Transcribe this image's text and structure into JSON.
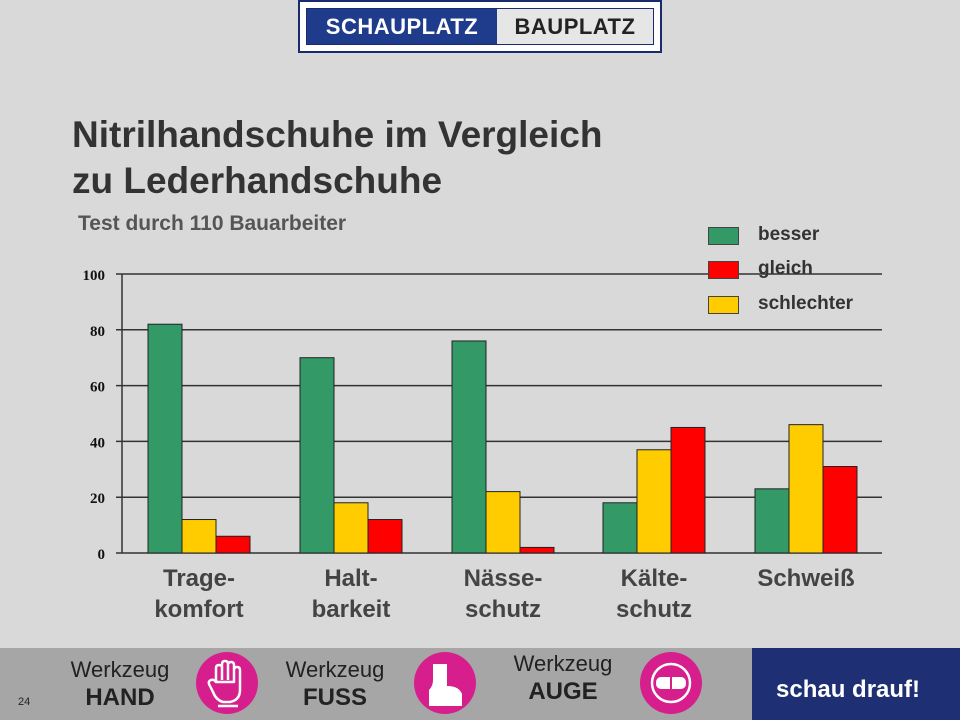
{
  "logo": {
    "left_word": "SCHAUPLATZ",
    "right_word": "BAUPLATZ"
  },
  "title_line1": "Nitrilhandschuhe im Vergleich",
  "title_line2": "zu Lederhandschuhe",
  "subtitle": "Test durch 110 Bauarbeiter",
  "chart_data": {
    "type": "bar",
    "title": "Nitrilhandschuhe im Vergleich zu Lederhandschuhe",
    "subtitle": "Test durch 110 Bauarbeiter",
    "categories": [
      "Trage-\nkomfort",
      "Halt-\nbarkeit",
      "Nässe-\nschutz",
      "Kälte-\nschutz",
      "Schweiß"
    ],
    "series_order_per_group": [
      [
        "besser",
        "schlechter",
        "gleich"
      ],
      [
        "besser",
        "schlechter",
        "gleich"
      ],
      [
        "besser",
        "schlechter",
        "gleich"
      ],
      [
        "besser",
        "schlechter",
        "gleich"
      ],
      [
        "besser",
        "schlechter",
        "gleich"
      ]
    ],
    "series": [
      {
        "name": "besser",
        "color": "#339966",
        "values": [
          82,
          70,
          76,
          18,
          23
        ]
      },
      {
        "name": "gleich",
        "color": "#ff0000",
        "values": [
          6,
          12,
          2,
          45,
          31
        ]
      },
      {
        "name": "schlechter",
        "color": "#ffcc00",
        "values": [
          12,
          18,
          22,
          37,
          46
        ]
      }
    ],
    "yticks": [
      0,
      20,
      40,
      60,
      80,
      100
    ],
    "ylim": [
      0,
      100
    ],
    "grid": true,
    "legend": "top-right"
  },
  "footer": {
    "tools": [
      {
        "word": "Werkzeug",
        "name": "HAND",
        "icon": "glove-icon"
      },
      {
        "word": "Werkzeug",
        "name": "FUSS",
        "icon": "boot-icon"
      },
      {
        "word": "Werkzeug",
        "name": "AUGE",
        "icon": "goggles-icon"
      }
    ],
    "slogan": "schau drauf!",
    "page_number": "24"
  }
}
